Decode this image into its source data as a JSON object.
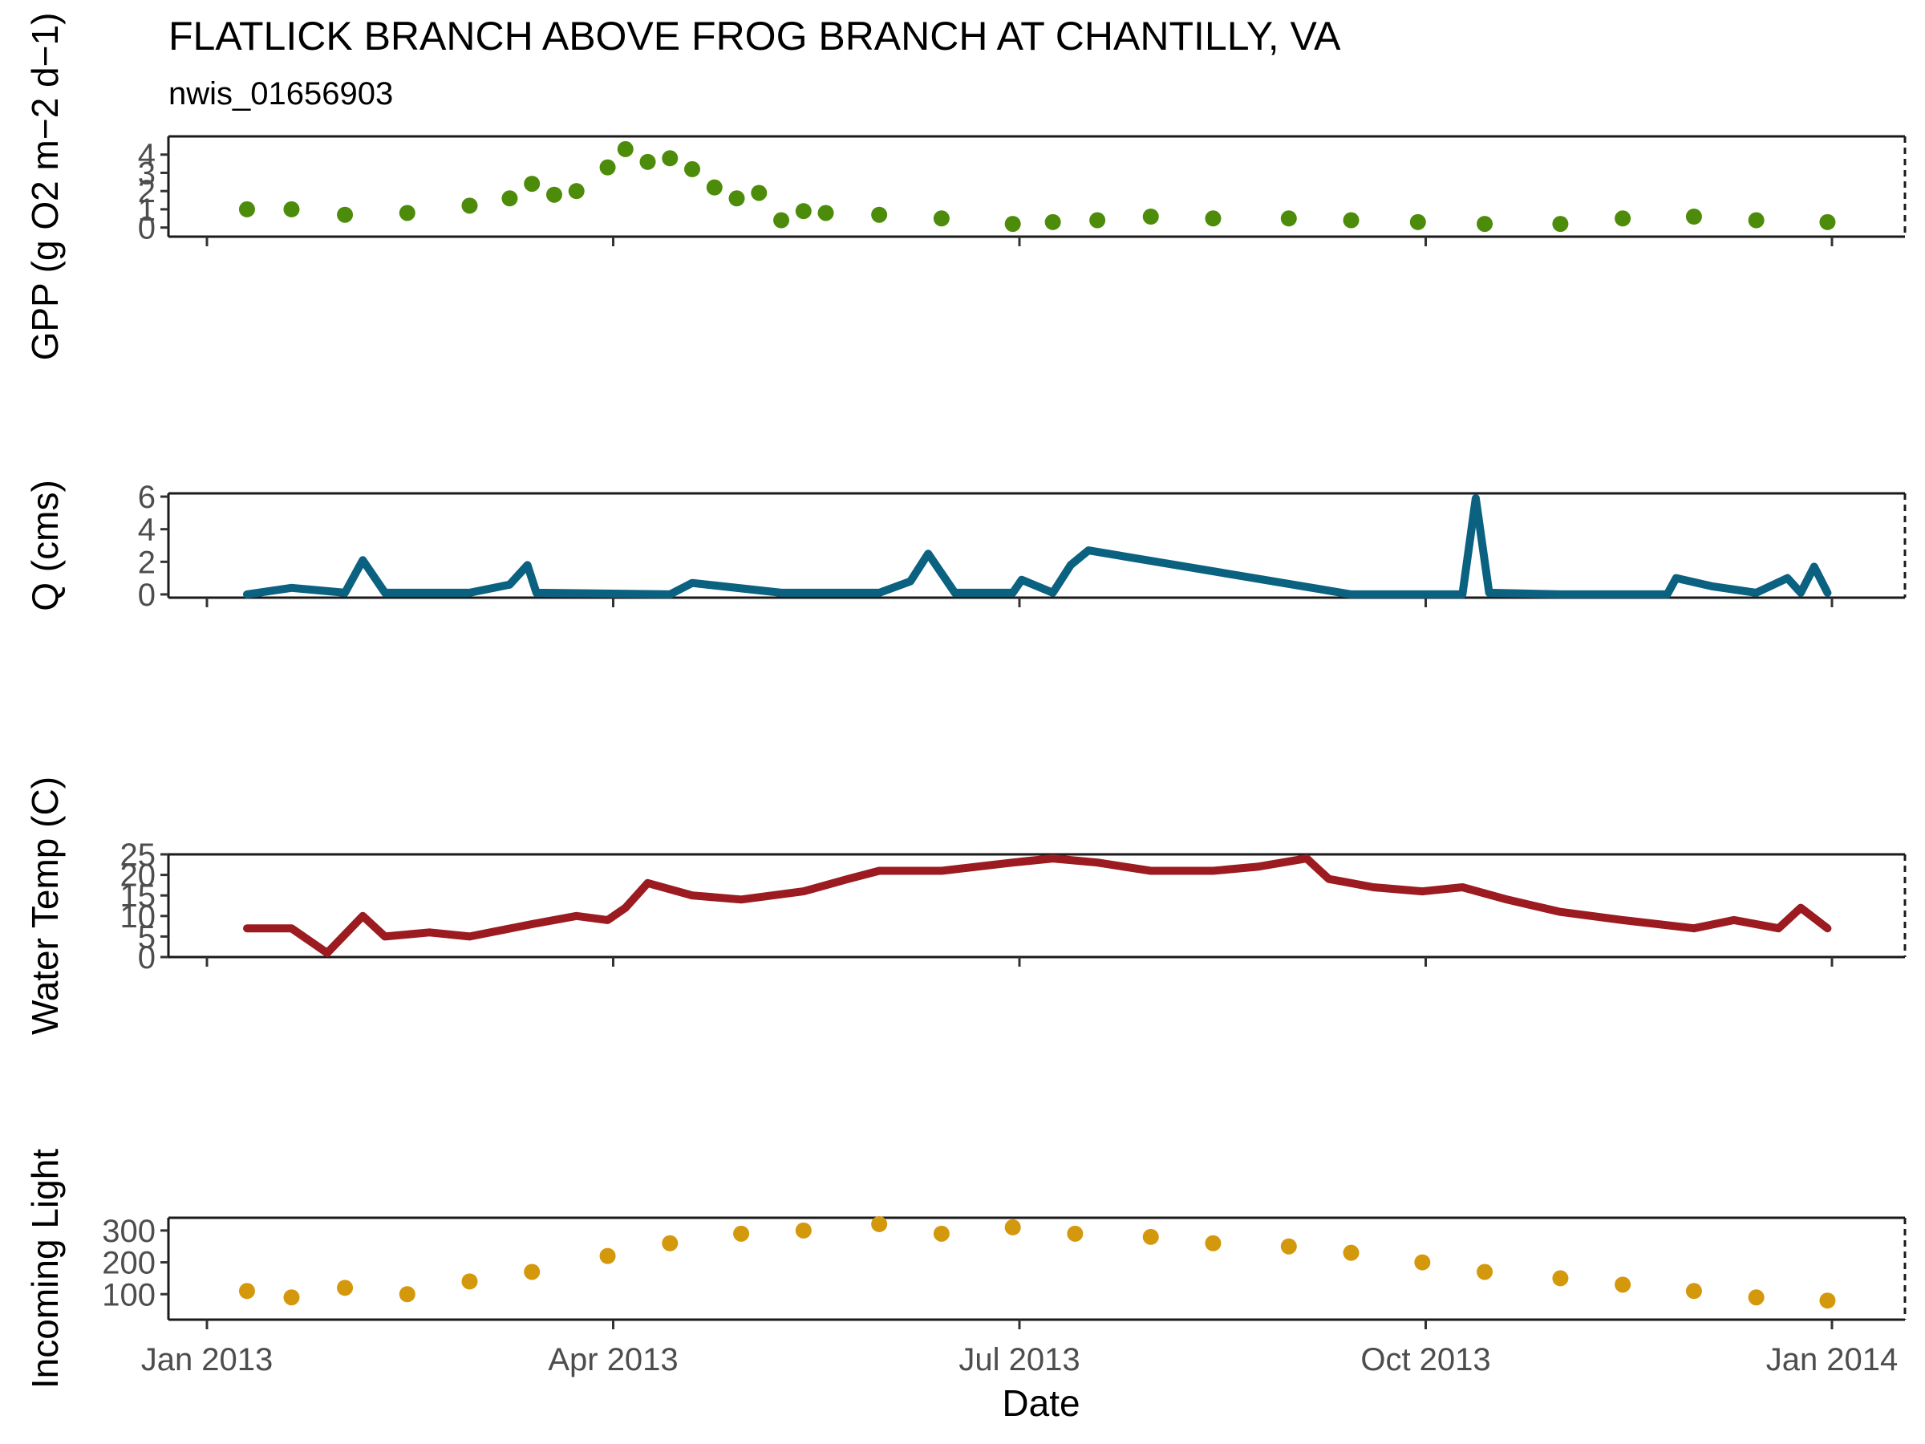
{
  "figure": {
    "title": "FLATLICK BRANCH ABOVE FROG BRANCH AT CHANTILLY, VA",
    "subtitle": "nwis_01656903",
    "xlabel": "Date",
    "x_ticks": [
      "Jan 2013",
      "Apr 2013",
      "Jul 2013",
      "Oct 2013",
      "Jan 2014"
    ]
  },
  "chart_data": [
    {
      "type": "scatter",
      "ylabel": "GPP (g  O2 m−2 d−1)",
      "color": "#4d8c0b",
      "ylim": [
        -0.5,
        5
      ],
      "y_ticks": [
        "0",
        "1",
        "2",
        "3",
        "4"
      ],
      "x_range": [
        "2013-01-01",
        "2014-01-01"
      ],
      "x": [
        "2013-01-10",
        "2013-01-20",
        "2013-02-01",
        "2013-02-15",
        "2013-03-01",
        "2013-03-10",
        "2013-03-15",
        "2013-03-20",
        "2013-03-25",
        "2013-04-01",
        "2013-04-05",
        "2013-04-10",
        "2013-04-15",
        "2013-04-20",
        "2013-04-25",
        "2013-04-30",
        "2013-05-05",
        "2013-05-10",
        "2013-05-15",
        "2013-05-20",
        "2013-06-01",
        "2013-06-15",
        "2013-07-01",
        "2013-07-10",
        "2013-07-20",
        "2013-08-01",
        "2013-08-15",
        "2013-09-01",
        "2013-09-15",
        "2013-09-30",
        "2013-10-15",
        "2013-11-01",
        "2013-11-15",
        "2013-12-01",
        "2013-12-15",
        "2013-12-31"
      ],
      "y": [
        1.0,
        1.0,
        0.7,
        0.8,
        1.2,
        1.6,
        2.4,
        1.8,
        2.0,
        3.3,
        4.3,
        3.6,
        3.8,
        3.2,
        2.2,
        1.6,
        1.9,
        0.4,
        0.9,
        0.8,
        0.7,
        0.5,
        0.2,
        0.3,
        0.4,
        0.6,
        0.5,
        0.5,
        0.4,
        0.3,
        0.2,
        0.2,
        0.5,
        0.6,
        0.4,
        0.3
      ]
    },
    {
      "type": "line",
      "ylabel": "Q (cms)",
      "color": "#0b6180",
      "ylim": [
        -0.2,
        6.2
      ],
      "y_ticks": [
        "0",
        "2",
        "4",
        "6"
      ],
      "x_range": [
        "2013-01-01",
        "2014-01-01"
      ],
      "x": [
        "2013-01-10",
        "2013-01-20",
        "2013-02-01",
        "2013-02-05",
        "2013-02-10",
        "2013-03-01",
        "2013-03-10",
        "2013-03-14",
        "2013-03-16",
        "2013-04-15",
        "2013-04-20",
        "2013-05-10",
        "2013-06-01",
        "2013-06-08",
        "2013-06-12",
        "2013-06-18",
        "2013-07-01",
        "2013-07-03",
        "2013-07-10",
        "2013-07-14",
        "2013-07-18",
        "2013-09-15",
        "2013-10-10",
        "2013-10-13",
        "2013-10-16",
        "2013-11-01",
        "2013-11-25",
        "2013-11-27",
        "2013-12-05",
        "2013-12-15",
        "2013-12-22",
        "2013-12-25",
        "2013-12-28",
        "2013-12-31"
      ],
      "y": [
        0.0,
        0.4,
        0.1,
        2.1,
        0.1,
        0.1,
        0.6,
        1.8,
        0.1,
        0.0,
        0.7,
        0.1,
        0.1,
        0.8,
        2.5,
        0.1,
        0.1,
        0.9,
        0.1,
        1.8,
        2.7,
        0.0,
        0.0,
        5.9,
        0.1,
        0.0,
        0.0,
        1.0,
        0.5,
        0.1,
        1.0,
        0.1,
        1.7,
        0.1
      ]
    },
    {
      "type": "line",
      "ylabel": "Water Temp (C)",
      "color": "#9b1b20",
      "ylim": [
        0,
        25
      ],
      "y_ticks": [
        "0",
        "5",
        "10",
        "15",
        "20",
        "25"
      ],
      "x_range": [
        "2013-01-01",
        "2014-01-01"
      ],
      "x": [
        "2013-01-10",
        "2013-01-20",
        "2013-01-28",
        "2013-02-05",
        "2013-02-10",
        "2013-02-20",
        "2013-03-01",
        "2013-03-15",
        "2013-03-25",
        "2013-04-01",
        "2013-04-05",
        "2013-04-10",
        "2013-04-20",
        "2013-05-01",
        "2013-05-15",
        "2013-05-25",
        "2013-06-01",
        "2013-06-15",
        "2013-07-01",
        "2013-07-10",
        "2013-07-20",
        "2013-08-01",
        "2013-08-15",
        "2013-08-25",
        "2013-09-05",
        "2013-09-10",
        "2013-09-20",
        "2013-10-01",
        "2013-10-10",
        "2013-10-20",
        "2013-11-01",
        "2013-11-15",
        "2013-12-01",
        "2013-12-10",
        "2013-12-20",
        "2013-12-25",
        "2013-12-31"
      ],
      "y": [
        7,
        7,
        1,
        10,
        5,
        6,
        5,
        8,
        10,
        9,
        12,
        18,
        15,
        14,
        16,
        19,
        21,
        21,
        23,
        24,
        23,
        21,
        21,
        22,
        24,
        19,
        17,
        16,
        17,
        14,
        11,
        9,
        7,
        9,
        7,
        12,
        7
      ]
    },
    {
      "type": "scatter",
      "ylabel": "Incoming Light",
      "color": "#d4980c",
      "ylim": [
        20,
        340
      ],
      "y_ticks": [
        "100",
        "200",
        "300"
      ],
      "x_range": [
        "2013-01-01",
        "2014-01-01"
      ],
      "x": [
        "2013-01-10",
        "2013-01-20",
        "2013-02-01",
        "2013-02-15",
        "2013-03-01",
        "2013-03-15",
        "2013-04-01",
        "2013-04-15",
        "2013-05-01",
        "2013-05-15",
        "2013-06-01",
        "2013-06-15",
        "2013-07-01",
        "2013-07-15",
        "2013-08-01",
        "2013-08-15",
        "2013-09-01",
        "2013-09-15",
        "2013-10-01",
        "2013-10-15",
        "2013-11-01",
        "2013-11-15",
        "2013-12-01",
        "2013-12-15",
        "2013-12-31"
      ],
      "y": [
        110,
        90,
        120,
        100,
        140,
        170,
        220,
        260,
        290,
        300,
        320,
        290,
        310,
        290,
        280,
        260,
        250,
        230,
        200,
        170,
        150,
        130,
        110,
        90,
        80
      ]
    }
  ]
}
